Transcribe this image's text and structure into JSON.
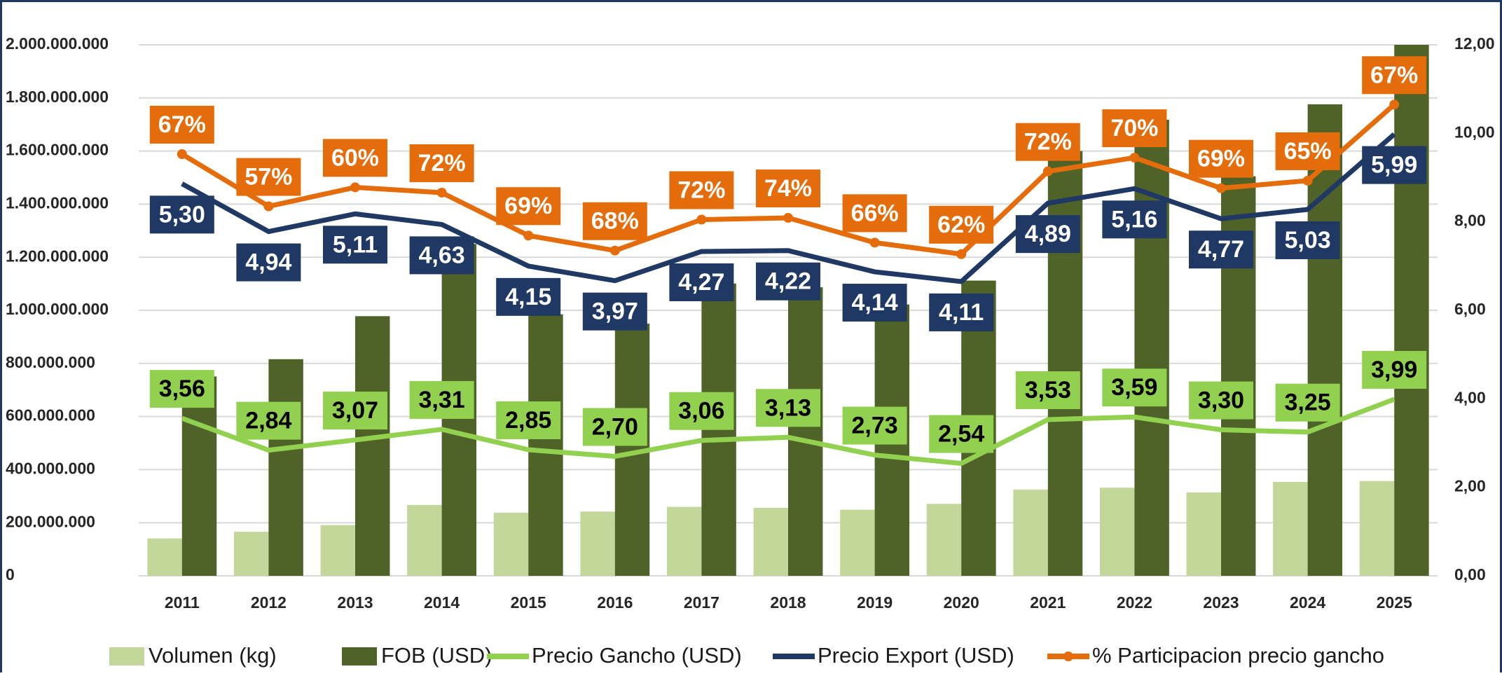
{
  "chart_data": {
    "type": "combo",
    "categories": [
      "2011",
      "2012",
      "2013",
      "2014",
      "2015",
      "2016",
      "2017",
      "2018",
      "2019",
      "2020",
      "2021",
      "2022",
      "2023",
      "2024",
      "2025"
    ],
    "ylim": [
      0,
      2000000000
    ],
    "yticks": [
      {
        "value": 0,
        "label": "0"
      },
      {
        "value": 200000000,
        "label": "200.000.000"
      },
      {
        "value": 400000000,
        "label": "400.000.000"
      },
      {
        "value": 600000000,
        "label": "600.000.000"
      },
      {
        "value": 800000000,
        "label": "800.000.000"
      },
      {
        "value": 1000000000,
        "label": "1.000.000.000"
      },
      {
        "value": 1200000000,
        "label": "1.200.000.000"
      },
      {
        "value": 1400000000,
        "label": "1.400.000.000"
      },
      {
        "value": 1600000000,
        "label": "1.600.000.000"
      },
      {
        "value": 1800000000,
        "label": "1.800.000.000"
      },
      {
        "value": 2000000000,
        "label": "2.000.000.000"
      }
    ],
    "y2lim": [
      0,
      12
    ],
    "y2ticks": [
      {
        "value": 0,
        "label": "0,00"
      },
      {
        "value": 2,
        "label": "2,00"
      },
      {
        "value": 4,
        "label": "4,00"
      },
      {
        "value": 6,
        "label": "6,00"
      },
      {
        "value": 8,
        "label": "8,00"
      },
      {
        "value": 10,
        "label": "10,00"
      },
      {
        "value": 12,
        "label": "12,00"
      }
    ],
    "grid": true,
    "stacked_lines": true,
    "legend": "bottom",
    "series": [
      {
        "name": "Volumen (kg)",
        "type": "bar",
        "color": "#c4d79b",
        "values": [
          141000000,
          166000000,
          191000000,
          267000000,
          238000000,
          242000000,
          260000000,
          256000000,
          249000000,
          271000000,
          325000000,
          332000000,
          314000000,
          354000000,
          357000000
        ]
      },
      {
        "name": "FOB (USD)",
        "type": "bar",
        "color": "#4f6228",
        "values": [
          751000000,
          816000000,
          978000000,
          1250000000,
          985000000,
          950000000,
          1101000000,
          1087000000,
          1022000000,
          1112000000,
          1600000000,
          1718000000,
          1505000000,
          1776000000,
          2000000000
        ]
      },
      {
        "name": "Precio Gancho (USD)",
        "type": "line",
        "axis": "y2",
        "color": "#92d050",
        "label_color": "#92d050",
        "label_text": "#000000",
        "values": [
          3.56,
          2.84,
          3.07,
          3.31,
          2.85,
          2.7,
          3.06,
          3.13,
          2.73,
          2.54,
          3.53,
          3.59,
          3.3,
          3.25,
          3.99
        ],
        "value_labels": [
          "3,56",
          "2,84",
          "3,07",
          "3,31",
          "2,85",
          "2,70",
          "3,06",
          "3,13",
          "2,73",
          "2,54",
          "3,53",
          "3,59",
          "3,30",
          "3,25",
          "3,99"
        ]
      },
      {
        "name": "Precio Export (USD)",
        "type": "line",
        "axis": "y2",
        "color": "#1f3864",
        "label_color": "#1f3864",
        "label_text": "#ffffff",
        "values": [
          5.3,
          4.94,
          5.11,
          4.63,
          4.15,
          3.97,
          4.27,
          4.22,
          4.14,
          4.11,
          4.89,
          5.16,
          4.77,
          5.03,
          5.99
        ],
        "value_labels": [
          "5,30",
          "4,94",
          "5,11",
          "4,63",
          "4,15",
          "3,97",
          "4,27",
          "4,22",
          "4,14",
          "4,11",
          "4,89",
          "5,16",
          "4,77",
          "5,03",
          "5,99"
        ]
      },
      {
        "name": "% Participacion precio gancho",
        "type": "line",
        "axis": "y2",
        "color": "#e46c0a",
        "label_color": "#e46c0a",
        "label_text": "#ffffff",
        "markers": true,
        "values": [
          0.67,
          0.57,
          0.6,
          0.72,
          0.69,
          0.68,
          0.72,
          0.74,
          0.66,
          0.62,
          0.72,
          0.7,
          0.69,
          0.65,
          0.67
        ],
        "value_labels": [
          "67%",
          "57%",
          "60%",
          "72%",
          "69%",
          "68%",
          "72%",
          "74%",
          "66%",
          "62%",
          "72%",
          "70%",
          "69%",
          "65%",
          "67%"
        ]
      }
    ]
  }
}
